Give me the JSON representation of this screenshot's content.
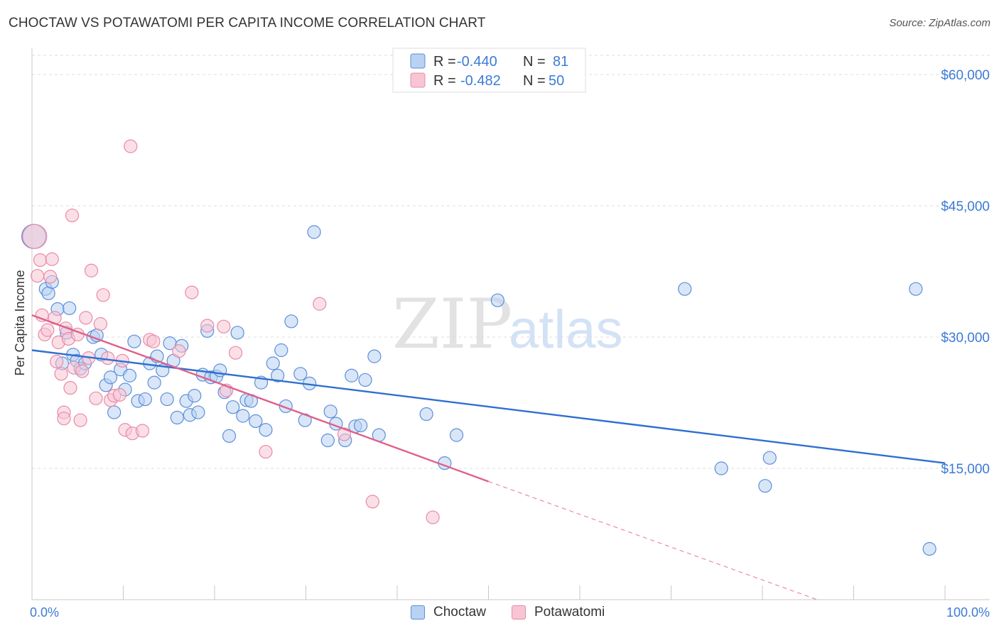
{
  "title": "CHOCTAW VS POTAWATOMI PER CAPITA INCOME CORRELATION CHART",
  "source": "Source: ZipAtlas.com",
  "watermark": {
    "zip": "ZIP",
    "atlas": "atlas"
  },
  "chart_data": {
    "type": "scatter",
    "ylabel": "Per Capita Income",
    "xlim": [
      0,
      100
    ],
    "ylim": [
      0,
      63000
    ],
    "x_tick_labels": [
      "0.0%",
      "100.0%"
    ],
    "y_ticks": [
      15000,
      30000,
      45000,
      60000
    ],
    "y_tick_labels": [
      "$15,000",
      "$30,000",
      "$45,000",
      "$60,000"
    ],
    "grid": "horizontal dashed",
    "legend_position": "top-center",
    "stats": [
      {
        "r_label": "R =",
        "r_value": "-0.440",
        "n_label": "N =",
        "n_value": "81"
      },
      {
        "r_label": "R =",
        "r_value": "-0.482",
        "n_label": "N = ",
        "n_value": "50"
      }
    ],
    "series": [
      {
        "name": "Choctaw",
        "color": "#5b8fd9",
        "fill": "#b9d2f2",
        "trend": {
          "x": [
            0,
            100
          ],
          "y": [
            28500,
            15600
          ]
        },
        "points": [
          [
            0.2,
            41500
          ],
          [
            1.5,
            35500
          ],
          [
            1.8,
            35000
          ],
          [
            2.2,
            36300
          ],
          [
            2.8,
            33200
          ],
          [
            3.3,
            27000
          ],
          [
            3.8,
            30500
          ],
          [
            4.1,
            33300
          ],
          [
            4.5,
            28000
          ],
          [
            4.9,
            27300
          ],
          [
            5.3,
            26400
          ],
          [
            5.8,
            27000
          ],
          [
            6.7,
            30000
          ],
          [
            7.1,
            30200
          ],
          [
            7.6,
            28000
          ],
          [
            8.1,
            24500
          ],
          [
            8.6,
            25400
          ],
          [
            9.0,
            21400
          ],
          [
            9.7,
            26300
          ],
          [
            10.2,
            24000
          ],
          [
            10.7,
            25600
          ],
          [
            11.2,
            29500
          ],
          [
            11.6,
            22700
          ],
          [
            12.4,
            22900
          ],
          [
            12.9,
            27000
          ],
          [
            13.4,
            24800
          ],
          [
            13.7,
            27800
          ],
          [
            14.3,
            26200
          ],
          [
            14.8,
            22900
          ],
          [
            15.1,
            29300
          ],
          [
            15.5,
            27300
          ],
          [
            15.9,
            20800
          ],
          [
            16.4,
            29000
          ],
          [
            16.9,
            22700
          ],
          [
            17.3,
            21100
          ],
          [
            17.8,
            23300
          ],
          [
            18.2,
            21400
          ],
          [
            18.7,
            25700
          ],
          [
            19.2,
            30700
          ],
          [
            19.6,
            25400
          ],
          [
            20.2,
            25500
          ],
          [
            20.6,
            26200
          ],
          [
            21.1,
            23700
          ],
          [
            21.6,
            18700
          ],
          [
            22.0,
            22000
          ],
          [
            22.5,
            30500
          ],
          [
            23.1,
            21000
          ],
          [
            23.5,
            22800
          ],
          [
            24.0,
            22700
          ],
          [
            24.5,
            20400
          ],
          [
            25.1,
            24800
          ],
          [
            25.6,
            19400
          ],
          [
            26.4,
            27000
          ],
          [
            26.9,
            25600
          ],
          [
            27.3,
            28500
          ],
          [
            27.8,
            22100
          ],
          [
            28.4,
            31800
          ],
          [
            29.4,
            25800
          ],
          [
            29.9,
            20500
          ],
          [
            30.4,
            24700
          ],
          [
            30.9,
            42000
          ],
          [
            32.4,
            18200
          ],
          [
            32.7,
            21500
          ],
          [
            33.3,
            20100
          ],
          [
            34.3,
            18200
          ],
          [
            35.0,
            25600
          ],
          [
            35.4,
            19800
          ],
          [
            36.0,
            19900
          ],
          [
            36.5,
            25100
          ],
          [
            37.5,
            27800
          ],
          [
            38.0,
            18800
          ],
          [
            43.2,
            21200
          ],
          [
            45.2,
            15600
          ],
          [
            46.5,
            18800
          ],
          [
            51.0,
            34200
          ],
          [
            71.5,
            35500
          ],
          [
            75.5,
            15000
          ],
          [
            80.3,
            13000
          ],
          [
            80.8,
            16200
          ],
          [
            96.8,
            35500
          ],
          [
            98.3,
            5800
          ]
        ]
      },
      {
        "name": "Potawatomi",
        "color": "#e98aa8",
        "fill": "#f7c5d4",
        "trend": {
          "x": [
            0,
            50
          ],
          "y": [
            32500,
            13500
          ]
        },
        "trend_extension": {
          "x": [
            50,
            86
          ],
          "y": [
            13500,
            0
          ]
        },
        "points": [
          [
            0.3,
            41500
          ],
          [
            0.6,
            37000
          ],
          [
            0.9,
            38800
          ],
          [
            1.1,
            32500
          ],
          [
            1.4,
            30300
          ],
          [
            1.7,
            30800
          ],
          [
            2.0,
            36900
          ],
          [
            2.2,
            38900
          ],
          [
            2.5,
            32200
          ],
          [
            2.7,
            27200
          ],
          [
            2.9,
            29400
          ],
          [
            3.2,
            25800
          ],
          [
            3.5,
            21400
          ],
          [
            3.5,
            20700
          ],
          [
            3.7,
            31000
          ],
          [
            4.0,
            29800
          ],
          [
            4.2,
            24200
          ],
          [
            4.4,
            43900
          ],
          [
            4.6,
            26500
          ],
          [
            5.0,
            30300
          ],
          [
            5.3,
            20500
          ],
          [
            5.5,
            26100
          ],
          [
            5.9,
            32200
          ],
          [
            6.2,
            27600
          ],
          [
            6.5,
            37600
          ],
          [
            7.0,
            23000
          ],
          [
            7.5,
            31500
          ],
          [
            7.8,
            34800
          ],
          [
            8.3,
            27600
          ],
          [
            8.6,
            22800
          ],
          [
            9.0,
            23300
          ],
          [
            9.6,
            23400
          ],
          [
            9.9,
            27300
          ],
          [
            10.2,
            19400
          ],
          [
            10.8,
            51800
          ],
          [
            11.0,
            19000
          ],
          [
            12.1,
            19300
          ],
          [
            12.9,
            29700
          ],
          [
            13.3,
            29500
          ],
          [
            16.1,
            28400
          ],
          [
            17.5,
            35100
          ],
          [
            19.2,
            31300
          ],
          [
            21.0,
            31200
          ],
          [
            21.3,
            23900
          ],
          [
            22.3,
            28200
          ],
          [
            25.6,
            16900
          ],
          [
            31.5,
            33800
          ],
          [
            34.2,
            18900
          ],
          [
            37.3,
            11200
          ],
          [
            43.9,
            9400
          ]
        ]
      }
    ]
  }
}
